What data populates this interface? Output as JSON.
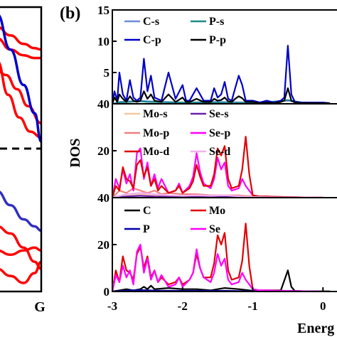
{
  "panel_label": "(b)",
  "band_xlabel": "G",
  "chart_data": [
    {
      "type": "line",
      "panel": "band-structure",
      "xticks": [
        "G"
      ],
      "series": [
        {
          "color": "#ff0000",
          "x": [
            0,
            0.25,
            0.5,
            0.75,
            1.0
          ],
          "y": [
            0.62,
            0.38,
            0.22,
            0.12,
            0.08
          ]
        },
        {
          "color": "#ff0000",
          "x": [
            0,
            0.2,
            0.45,
            0.7,
            1.0
          ],
          "y": [
            0.55,
            0.52,
            0.42,
            0.3,
            0.18
          ]
        },
        {
          "color": "#ff0000",
          "x": [
            0,
            0.3,
            0.6,
            0.85,
            1.0
          ],
          "y": [
            0.78,
            0.7,
            0.66,
            0.64,
            0.64
          ]
        },
        {
          "color": "#ff0000",
          "x": [
            0,
            0.3,
            0.6,
            0.85,
            1.0
          ],
          "y": [
            0.86,
            0.8,
            0.74,
            0.71,
            0.7
          ]
        },
        {
          "color": "#0000cc",
          "x": [
            0,
            0.3,
            0.6,
            0.85,
            1.0
          ],
          "y": [
            0.95,
            0.7,
            0.45,
            0.25,
            0.05
          ]
        },
        {
          "color": "#3030c0",
          "x": [
            0,
            0.3,
            0.6,
            0.85,
            1.0
          ],
          "y": [
            -0.3,
            -0.4,
            -0.5,
            -0.55,
            -0.58
          ]
        },
        {
          "color": "#ff0000",
          "x": [
            0,
            0.3,
            0.6,
            0.85,
            1.0
          ],
          "y": [
            -0.55,
            -0.6,
            -0.7,
            -0.8,
            -0.85
          ]
        },
        {
          "color": "#ff0000",
          "x": [
            0,
            0.3,
            0.6,
            0.85,
            1.0
          ],
          "y": [
            -0.72,
            -0.75,
            -0.72,
            -0.7,
            -0.72
          ]
        },
        {
          "color": "#ff0000",
          "x": [
            0,
            0.3,
            0.6,
            0.85,
            1.0
          ],
          "y": [
            -0.85,
            -0.9,
            -0.95,
            -0.88,
            -0.8
          ]
        }
      ],
      "fermi_level": 0
    },
    {
      "type": "line",
      "panel": "top",
      "xlim": [
        -3,
        0.2
      ],
      "ylim": [
        0,
        15
      ],
      "yticks": [
        "5",
        "10",
        "15"
      ],
      "legend": [
        [
          "C-s",
          "P-s"
        ],
        [
          "C-p",
          "P-p"
        ]
      ],
      "series": [
        {
          "name": "C-s",
          "color": "#6a8cd8",
          "x": [
            -3,
            -2.9,
            -2.6,
            -2.5,
            -2,
            -1.5,
            -1,
            -0.8,
            -0.5,
            -0.3,
            0
          ],
          "y": [
            0,
            0.3,
            0.5,
            0.4,
            0.2,
            0.3,
            0.2,
            0.3,
            0.5,
            0.2,
            0.1
          ]
        },
        {
          "name": "P-s",
          "color": "#1a8a8a",
          "x": [
            -3,
            -2.9,
            -2.6,
            -2.5,
            -2,
            -1.5,
            -1,
            -0.8,
            -0.5,
            -0.3,
            0
          ],
          "y": [
            0,
            0.2,
            0.4,
            0.3,
            0.2,
            0.2,
            0.1,
            0.2,
            0.6,
            0.2,
            0.1
          ]
        },
        {
          "name": "C-p",
          "color": "#0000c8",
          "x": [
            -3,
            -2.97,
            -2.93,
            -2.9,
            -2.85,
            -2.8,
            -2.75,
            -2.7,
            -2.65,
            -2.6,
            -2.55,
            -2.5,
            -2.45,
            -2.4,
            -2.3,
            -2.2,
            -2.1,
            -2.0,
            -1.95,
            -1.9,
            -1.8,
            -1.7,
            -1.6,
            -1.55,
            -1.5,
            -1.45,
            -1.4,
            -1.35,
            -1.3,
            -1.25,
            -1.2,
            -1.15,
            -1.1,
            -1.0,
            -0.9,
            -0.8,
            -0.7,
            -0.6,
            -0.55,
            -0.5,
            -0.45,
            -0.4,
            -0.3,
            -0.2,
            -0.1,
            0,
            0.1
          ],
          "y": [
            0,
            2,
            0.5,
            5,
            1.5,
            0.5,
            3.8,
            1,
            0.5,
            1,
            7.2,
            2,
            4.5,
            1,
            0.5,
            5,
            0.8,
            3,
            0.5,
            0.5,
            2.5,
            0.5,
            0.5,
            2.5,
            1,
            1.5,
            3.5,
            0.8,
            0.5,
            2.5,
            4.5,
            3.0,
            0.5,
            0.5,
            0.2,
            0.5,
            0.2,
            0.5,
            1.0,
            9.3,
            1.5,
            0.3,
            0.2,
            0.2,
            0.2,
            0.2,
            0.1
          ]
        },
        {
          "name": "P-p",
          "color": "#000000",
          "x": [
            -3,
            -2.97,
            -2.93,
            -2.9,
            -2.85,
            -2.8,
            -2.75,
            -2.7,
            -2.65,
            -2.6,
            -2.55,
            -2.5,
            -2.45,
            -2.4,
            -2.3,
            -2.2,
            -2.1,
            -2.0,
            -1.95,
            -1.9,
            -1.8,
            -1.7,
            -1.6,
            -1.55,
            -1.5,
            -1.45,
            -1.4,
            -1.35,
            -1.3,
            -1.25,
            -1.2,
            -1.15,
            -1.1,
            -1.0,
            -0.9,
            -0.8,
            -0.7,
            -0.6,
            -0.55,
            -0.5,
            -0.45,
            -0.4,
            -0.3,
            -0.2,
            -0.1,
            0,
            0.1
          ],
          "y": [
            0,
            1,
            0.3,
            1.5,
            0.8,
            0.3,
            1.2,
            0.5,
            0.3,
            0.5,
            2.0,
            0.8,
            1.5,
            0.5,
            0.3,
            1.5,
            0.3,
            1.0,
            0.3,
            0.3,
            0.8,
            0.3,
            0.3,
            0.8,
            0.5,
            0.6,
            1.0,
            0.4,
            0.3,
            0.8,
            1.2,
            0.9,
            0.3,
            0.3,
            0.1,
            0.2,
            0.1,
            0.3,
            0.5,
            2.5,
            0.5,
            0.2,
            0.1,
            0.1,
            0.1,
            0.1,
            0.1
          ]
        }
      ]
    },
    {
      "type": "line",
      "panel": "middle",
      "xlim": [
        -3,
        0.2
      ],
      "ylim": [
        0,
        40
      ],
      "yticks": [
        "20",
        "40"
      ],
      "ylabel": "DOS",
      "legend": [
        [
          "Mo-s",
          "Se-s"
        ],
        [
          "Mo-p",
          "Se-p"
        ],
        [
          "Mo-d",
          "Se-d"
        ]
      ],
      "series": [
        {
          "name": "Mo-s",
          "color": "#f5c9a0",
          "x": [
            -3,
            -2.8,
            -2.6,
            -2.4,
            -2.2,
            -2.0,
            -1.8,
            -1.6,
            -1.4,
            -1.2,
            -1.0,
            -0.8,
            -0.6,
            -0.4,
            -0.2,
            0
          ],
          "y": [
            0,
            1,
            1.5,
            1,
            0.8,
            0.6,
            0.5,
            0.6,
            0.5,
            0.4,
            0.2,
            0.1,
            0.1,
            0.1,
            0.1,
            0
          ]
        },
        {
          "name": "Se-s",
          "color": "#6a20b0",
          "x": [
            -3,
            -2.8,
            -2.6,
            -2.4,
            -2.2,
            -2.0,
            -1.8,
            -1.6,
            -1.4,
            -1.2,
            -1.0,
            -0.8,
            -0.6,
            -0.4,
            -0.2,
            0
          ],
          "y": [
            0,
            0.5,
            0.8,
            0.5,
            0.4,
            0.3,
            0.3,
            0.3,
            0.3,
            0.2,
            0.1,
            0.1,
            0.1,
            0.1,
            0.1,
            0
          ]
        },
        {
          "name": "Mo-p",
          "color": "#f08080",
          "x": [
            -3,
            -2.9,
            -2.8,
            -2.7,
            -2.6,
            -2.5,
            -2.4,
            -2.3,
            -2.2,
            -2.0,
            -1.8,
            -1.6,
            -1.4,
            -1.2,
            -1.0,
            -0.8,
            -0.6,
            -0.4,
            -0.2,
            0
          ],
          "y": [
            0,
            3,
            2,
            4,
            3,
            2,
            3,
            1.5,
            2,
            1.5,
            1.5,
            1,
            1,
            1,
            0.5,
            0.3,
            0.2,
            0.2,
            0.1,
            0
          ]
        },
        {
          "name": "Se-p",
          "color": "#ff00ff",
          "x": [
            -3,
            -2.95,
            -2.9,
            -2.85,
            -2.8,
            -2.75,
            -2.7,
            -2.65,
            -2.6,
            -2.55,
            -2.5,
            -2.45,
            -2.4,
            -2.35,
            -2.3,
            -2.2,
            -2.1,
            -2.05,
            -2.0,
            -1.9,
            -1.85,
            -1.8,
            -1.75,
            -1.7,
            -1.6,
            -1.55,
            -1.5,
            -1.45,
            -1.4,
            -1.35,
            -1.3,
            -1.2,
            -1.15,
            -1.1,
            -1.05,
            -1.0,
            -0.9,
            -0.8,
            -0.6,
            -0.4,
            -0.2,
            0
          ],
          "y": [
            0,
            8,
            4,
            12,
            6,
            10,
            3,
            19,
            21,
            8,
            15,
            5,
            10,
            4,
            8,
            2,
            3,
            6,
            2,
            5,
            9,
            19,
            11,
            6,
            4,
            8,
            17,
            12,
            15,
            5,
            3,
            4,
            8,
            5,
            3,
            1,
            0.5,
            0.5,
            0.3,
            0.2,
            0.1,
            0
          ]
        },
        {
          "name": "Mo-d",
          "color": "#e00000",
          "x": [
            -3,
            -2.95,
            -2.9,
            -2.85,
            -2.8,
            -2.75,
            -2.7,
            -2.65,
            -2.6,
            -2.55,
            -2.5,
            -2.45,
            -2.4,
            -2.35,
            -2.3,
            -2.2,
            -2.1,
            -2.05,
            -2.0,
            -1.9,
            -1.85,
            -1.8,
            -1.75,
            -1.7,
            -1.6,
            -1.55,
            -1.5,
            -1.45,
            -1.4,
            -1.35,
            -1.3,
            -1.2,
            -1.15,
            -1.1,
            -1.05,
            -1.0,
            -0.9,
            -0.8,
            -0.6,
            -0.4,
            -0.2,
            0
          ],
          "y": [
            0,
            5,
            3,
            13,
            8,
            7,
            4,
            14,
            16,
            9,
            13,
            5,
            8,
            3,
            5,
            2,
            3,
            5,
            2,
            4,
            7,
            14,
            9,
            5,
            5,
            10,
            21,
            18,
            22,
            8,
            4,
            5,
            12,
            26,
            10,
            1,
            0.5,
            0.5,
            0.3,
            0.2,
            0.1,
            0
          ]
        },
        {
          "name": "Se-d",
          "color": "#f0b0f0",
          "x": [
            -3,
            -2.8,
            -2.6,
            -2.4,
            -2.2,
            -2.0,
            -1.8,
            -1.6,
            -1.4,
            -1.2,
            -1.0,
            -0.8,
            -0.6,
            -0.4,
            -0.2,
            0
          ],
          "y": [
            0,
            1.5,
            2,
            1.5,
            1,
            0.8,
            1,
            0.8,
            1,
            0.6,
            0.3,
            0.2,
            0.1,
            0.1,
            0.1,
            0
          ]
        }
      ]
    },
    {
      "type": "line",
      "panel": "bottom",
      "xlim": [
        -3,
        0.2
      ],
      "ylim": [
        0,
        40
      ],
      "yticks": [
        "0",
        "20",
        "40"
      ],
      "xticks": [
        "-3",
        "-2",
        "-1",
        "0"
      ],
      "xlabel": "Energ",
      "legend": [
        [
          "C",
          "Mo"
        ],
        [
          "P",
          "Se"
        ]
      ],
      "series": [
        {
          "name": "C",
          "color": "#000000",
          "x": [
            -3,
            -2.9,
            -2.8,
            -2.7,
            -2.6,
            -2.55,
            -2.5,
            -2.45,
            -2.4,
            -2.2,
            -2.0,
            -1.8,
            -1.6,
            -1.5,
            -1.4,
            -1.2,
            -1.0,
            -0.8,
            -0.6,
            -0.5,
            -0.45,
            -0.4,
            -0.2,
            0,
            0.1
          ],
          "y": [
            0,
            0.5,
            1,
            0.5,
            1,
            2,
            1,
            2.5,
            1,
            1.5,
            1,
            1,
            0.5,
            1,
            1.5,
            1,
            0.3,
            0.5,
            0.5,
            9,
            2,
            0.2,
            0.1,
            0.1,
            0.1
          ]
        },
        {
          "name": "Mo",
          "color": "#e00000",
          "x": [
            -3,
            -2.95,
            -2.9,
            -2.85,
            -2.8,
            -2.75,
            -2.7,
            -2.65,
            -2.6,
            -2.55,
            -2.5,
            -2.45,
            -2.4,
            -2.35,
            -2.3,
            -2.2,
            -2.1,
            -2.05,
            -2.0,
            -1.9,
            -1.85,
            -1.8,
            -1.75,
            -1.7,
            -1.6,
            -1.55,
            -1.5,
            -1.45,
            -1.4,
            -1.35,
            -1.3,
            -1.2,
            -1.15,
            -1.1,
            -1.05,
            -1.0,
            -0.9,
            -0.8,
            -0.6,
            -0.4,
            -0.2,
            0
          ],
          "y": [
            0,
            9,
            4,
            15,
            9,
            8,
            5,
            16,
            19,
            10,
            15,
            6,
            9,
            4,
            6,
            3,
            4,
            6,
            3,
            5,
            8,
            16,
            10,
            6,
            6,
            12,
            24,
            20,
            25,
            9,
            5,
            6,
            13,
            29,
            11,
            1,
            0.5,
            0.5,
            0.3,
            0.2,
            0.1,
            0
          ]
        },
        {
          "name": "P",
          "color": "#0000aa",
          "x": [
            -3,
            -2.8,
            -2.6,
            -2.4,
            -2.2,
            -2.0,
            -1.8,
            -1.6,
            -1.4,
            -1.2,
            -1.0,
            -0.8,
            -0.6,
            -0.4,
            -0.2,
            0
          ],
          "y": [
            0,
            0.4,
            0.6,
            0.4,
            0.3,
            0.3,
            0.3,
            0.3,
            0.3,
            0.2,
            0.1,
            0.1,
            0.3,
            0.2,
            0.1,
            0
          ]
        },
        {
          "name": "Se",
          "color": "#ff00ff",
          "x": [
            -3,
            -2.95,
            -2.9,
            -2.85,
            -2.8,
            -2.75,
            -2.7,
            -2.65,
            -2.6,
            -2.55,
            -2.5,
            -2.45,
            -2.4,
            -2.35,
            -2.3,
            -2.2,
            -2.1,
            -2.05,
            -2.0,
            -1.9,
            -1.85,
            -1.8,
            -1.75,
            -1.7,
            -1.6,
            -1.55,
            -1.5,
            -1.45,
            -1.4,
            -1.35,
            -1.3,
            -1.2,
            -1.15,
            -1.1,
            -1.05,
            -1.0,
            -0.9,
            -0.8,
            -0.6,
            -0.4,
            -0.2,
            0
          ],
          "y": [
            0,
            7,
            4,
            11,
            6,
            9,
            3,
            17,
            20,
            8,
            14,
            5,
            9,
            4,
            7,
            2,
            3,
            6,
            2,
            5,
            8,
            18,
            10,
            6,
            4,
            8,
            16,
            11,
            14,
            5,
            3,
            4,
            8,
            5,
            3,
            1,
            0.5,
            0.5,
            0.3,
            0.2,
            0.1,
            0
          ]
        }
      ]
    }
  ]
}
